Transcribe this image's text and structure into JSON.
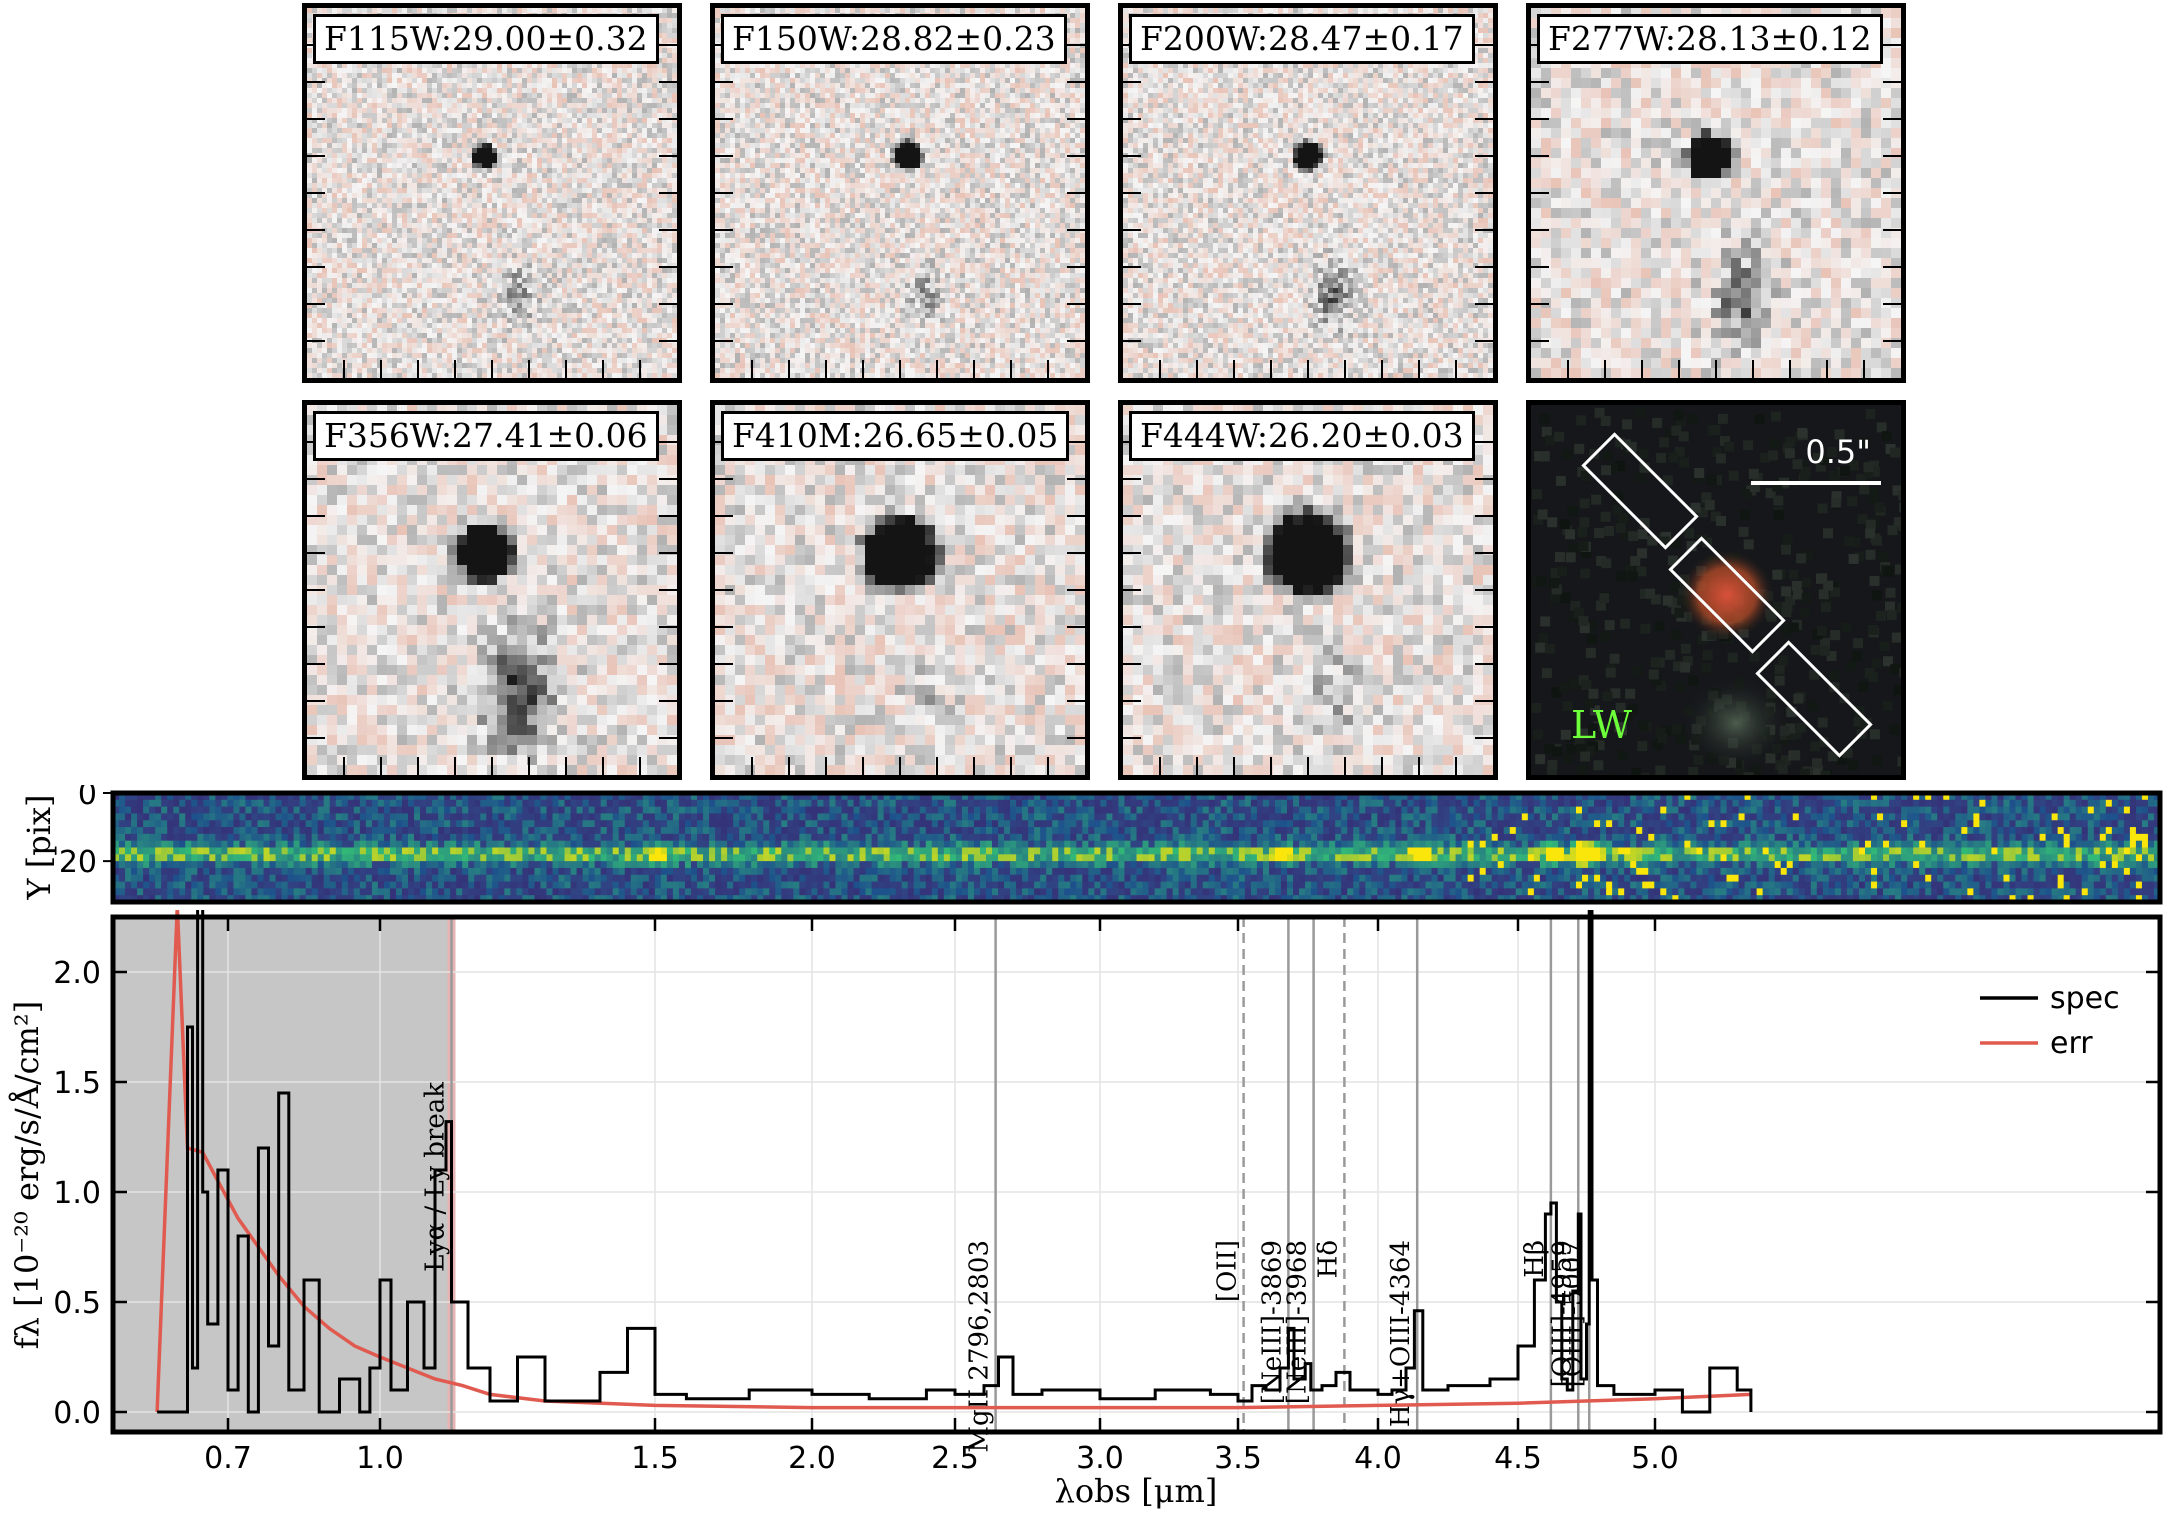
{
  "stamps": [
    {
      "band": "F115W",
      "label": "F115W:29.00±0.32",
      "srcs": [
        {
          "r": 12,
          "d": 0.9
        },
        {
          "r": 16,
          "d": 0.6
        }
      ]
    },
    {
      "band": "F150W",
      "label": "F150W:28.82±0.23",
      "srcs": [
        {
          "r": 14,
          "d": 0.95
        },
        {
          "r": 16,
          "d": 0.5
        }
      ]
    },
    {
      "band": "F200W",
      "label": "F200W:28.47±0.17",
      "srcs": [
        {
          "r": 14,
          "d": 0.95
        },
        {
          "r": 18,
          "d": 0.75
        }
      ]
    },
    {
      "band": "F277W",
      "label": "F277W:28.13±0.12",
      "srcs": [
        {
          "r": 22,
          "d": 1.0
        },
        {
          "r": 26,
          "d": 0.8
        }
      ]
    },
    {
      "band": "F356W",
      "label": "F356W:27.41±0.06",
      "srcs": [
        {
          "r": 28,
          "d": 1.0
        },
        {
          "r": 36,
          "d": 0.9
        }
      ]
    },
    {
      "band": "F410M",
      "label": "F410M:26.65±0.05",
      "srcs": [
        {
          "r": 36,
          "d": 1.0
        },
        {
          "r": 20,
          "d": 0.35
        }
      ]
    },
    {
      "band": "F444W",
      "label": "F444W:26.20±0.03",
      "srcs": [
        {
          "r": 40,
          "d": 1.0
        },
        {
          "r": 24,
          "d": 0.45
        }
      ]
    }
  ],
  "rgb_panel": {
    "scalebar": "0.5\"",
    "band": "LW",
    "source_color": "#d9503a"
  },
  "chart_data": {
    "type": "line",
    "xlabel": "λobs [μm]",
    "ylabel": "fλ [10⁻²⁰ erg/s/Å/cm²]",
    "ylim": [
      -0.08,
      2.3
    ],
    "grid": true,
    "legend_position": "top-right",
    "xticks": [
      "0.7",
      "1.0",
      "1.5",
      "2.0",
      "2.5",
      "3.0",
      "3.5",
      "4.0",
      "4.5",
      "5.0"
    ],
    "xtick_values": [
      0.7,
      1.0,
      1.5,
      2.0,
      2.5,
      3.0,
      3.5,
      4.0,
      4.5,
      5.0
    ],
    "yticks": [
      "0.0",
      "0.5",
      "1.0",
      "1.5",
      "2.0"
    ],
    "ytick_values": [
      0.0,
      0.5,
      1.0,
      1.5,
      2.0
    ],
    "shaded_region_x": [
      0.55,
      1.13
    ],
    "series": [
      {
        "name": "spec",
        "color": "#000000",
        "x": [
          0.56,
          0.6,
          0.62,
          0.63,
          0.64,
          0.65,
          0.66,
          0.68,
          0.7,
          0.72,
          0.74,
          0.76,
          0.78,
          0.8,
          0.82,
          0.85,
          0.88,
          0.92,
          0.96,
          0.98,
          1.0,
          1.02,
          1.05,
          1.08,
          1.1,
          1.12,
          1.13,
          1.16,
          1.2,
          1.25,
          1.3,
          1.4,
          1.45,
          1.5,
          1.6,
          1.8,
          2.0,
          2.2,
          2.4,
          2.5,
          2.6,
          2.65,
          2.7,
          2.8,
          3.0,
          3.2,
          3.4,
          3.5,
          3.55,
          3.6,
          3.65,
          3.68,
          3.7,
          3.74,
          3.76,
          3.8,
          3.85,
          3.9,
          4.0,
          4.05,
          4.1,
          4.13,
          4.16,
          4.25,
          4.4,
          4.5,
          4.56,
          4.6,
          4.62,
          4.64,
          4.66,
          4.68,
          4.7,
          4.72,
          4.73,
          4.75,
          4.76,
          4.77,
          4.79,
          4.85,
          5.0,
          5.1,
          5.2,
          5.3,
          5.35
        ],
        "y": [
          0.0,
          0.0,
          1.75,
          0.2,
          2.3,
          1.0,
          0.4,
          1.1,
          0.1,
          0.8,
          0.0,
          1.2,
          0.3,
          1.45,
          0.1,
          0.6,
          0.0,
          0.15,
          0.0,
          0.2,
          0.6,
          0.1,
          0.5,
          0.2,
          1.1,
          1.32,
          0.5,
          0.2,
          0.05,
          0.25,
          0.05,
          0.18,
          0.38,
          0.08,
          0.06,
          0.1,
          0.08,
          0.06,
          0.1,
          0.08,
          0.12,
          0.25,
          0.08,
          0.1,
          0.06,
          0.1,
          0.08,
          0.05,
          0.12,
          0.1,
          0.2,
          0.38,
          0.15,
          0.22,
          0.1,
          0.12,
          0.18,
          0.1,
          0.08,
          0.1,
          0.2,
          0.46,
          0.1,
          0.12,
          0.15,
          0.3,
          0.6,
          0.9,
          0.95,
          0.5,
          0.15,
          0.1,
          0.55,
          0.9,
          0.15,
          0.4,
          2.3,
          0.6,
          0.12,
          0.08,
          0.1,
          0.0,
          0.2,
          0.1,
          0.0
        ]
      },
      {
        "name": "err",
        "color": "#e05a4f",
        "x": [
          0.56,
          0.6,
          0.62,
          0.65,
          0.68,
          0.72,
          0.76,
          0.8,
          0.85,
          0.9,
          0.95,
          1.0,
          1.05,
          1.1,
          1.15,
          1.2,
          1.3,
          1.5,
          2.0,
          2.5,
          3.0,
          3.5,
          4.0,
          4.5,
          5.0,
          5.35
        ],
        "y": [
          0.0,
          2.3,
          1.2,
          1.18,
          1.05,
          0.88,
          0.75,
          0.62,
          0.48,
          0.38,
          0.3,
          0.25,
          0.2,
          0.15,
          0.12,
          0.08,
          0.05,
          0.03,
          0.02,
          0.02,
          0.02,
          0.02,
          0.03,
          0.04,
          0.06,
          0.08
        ]
      }
    ],
    "lines": [
      {
        "label": "Lyα / Ly break",
        "x": 1.13,
        "style": "solid"
      },
      {
        "label": "MgII 2796,2803",
        "x": 2.64,
        "style": "solid"
      },
      {
        "label": "[OII]",
        "x": 3.52,
        "style": "dashed"
      },
      {
        "label": "[NeIII]-3869",
        "x": 3.68,
        "style": "solid"
      },
      {
        "label": "[NeIII]-3968",
        "x": 3.77,
        "style": "solid"
      },
      {
        "label": "Hδ",
        "x": 3.88,
        "style": "dashed"
      },
      {
        "label": "Hγ+OIII-4364",
        "x": 4.14,
        "style": "solid"
      },
      {
        "label": "Hβ",
        "x": 4.62,
        "style": "solid"
      },
      {
        "label": "[OIII]-4959",
        "x": 4.72,
        "style": "solid"
      },
      {
        "label": "[OIII]-5007",
        "x": 4.76,
        "style": "solid"
      }
    ],
    "legend": [
      "spec",
      "err"
    ]
  },
  "spec2d": {
    "ylabel": "Y [pix]",
    "yticks": [
      "0",
      "20"
    ],
    "ytick_values": [
      0,
      20
    ],
    "ylim": [
      0,
      32
    ],
    "trace_row": 18,
    "blobs": [
      {
        "x": 1.5,
        "s": 0.6
      },
      {
        "x": 3.65,
        "s": 0.7
      },
      {
        "x": 4.14,
        "s": 0.9
      },
      {
        "x": 4.62,
        "s": 1.0
      },
      {
        "x": 4.72,
        "s": 0.9
      },
      {
        "x": 4.76,
        "s": 1.0
      }
    ]
  }
}
